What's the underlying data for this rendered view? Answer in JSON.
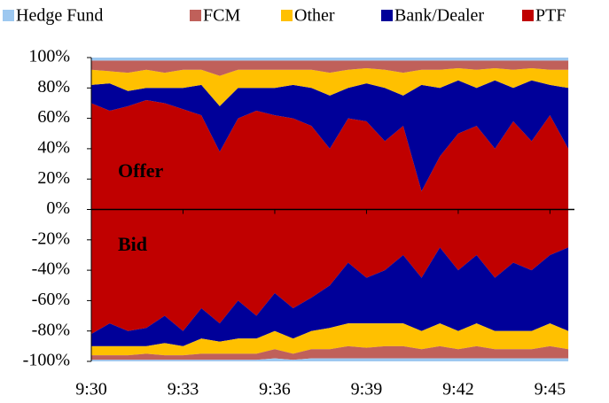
{
  "chart_data": {
    "type": "stacked_area",
    "annotations": [
      "Offer",
      "Bid"
    ],
    "x": [
      570,
      570.6,
      571.2,
      571.8,
      572.4,
      573,
      573.6,
      574.2,
      574.8,
      575.4,
      576,
      576.6,
      577.2,
      577.8,
      578.4,
      579,
      579.6,
      580.2,
      580.8,
      581.4,
      582,
      582.6,
      583.2,
      583.8,
      584.4,
      585,
      585.6
    ],
    "series": [
      {
        "name": "Hedge Fund",
        "color": "#9dc8f0",
        "values": [
          2,
          2,
          2,
          2,
          2,
          2,
          2,
          2,
          2,
          2,
          2,
          2,
          2,
          2,
          2,
          2,
          2,
          2,
          2,
          2,
          2,
          2,
          2,
          2,
          2,
          2,
          2
        ],
        "bid_values": [
          -1,
          -1,
          -1,
          -1,
          -1,
          -1,
          -1,
          -1,
          -1,
          -1,
          -2,
          -1,
          -2,
          -2,
          -2,
          -2,
          -2,
          -2,
          -2,
          -2,
          -2,
          -2,
          -2,
          -2,
          -2,
          -2,
          -2
        ]
      },
      {
        "name": "FCM",
        "color": "#c0605a",
        "values": [
          6,
          7,
          8,
          6,
          8,
          6,
          6,
          10,
          6,
          6,
          6,
          6,
          6,
          8,
          6,
          5,
          6,
          8,
          6,
          6,
          5,
          6,
          5,
          6,
          5,
          6,
          6
        ],
        "bid_values": [
          -3,
          -3,
          -3,
          -4,
          -3,
          -3,
          -4,
          -4,
          -4,
          -4,
          -6,
          -4,
          -6,
          -6,
          -8,
          -7,
          -8,
          -8,
          -6,
          -8,
          -6,
          -8,
          -6,
          -6,
          -6,
          -8,
          -6
        ]
      },
      {
        "name": "Other",
        "color": "#ffc000",
        "values": [
          10,
          8,
          12,
          12,
          10,
          12,
          10,
          20,
          12,
          12,
          12,
          10,
          12,
          15,
          12,
          10,
          12,
          15,
          10,
          12,
          8,
          12,
          8,
          12,
          8,
          10,
          12
        ],
        "bid_values": [
          -6,
          -6,
          -6,
          -5,
          -8,
          -6,
          -10,
          -8,
          -10,
          -10,
          -12,
          -10,
          -12,
          -14,
          -15,
          -16,
          -15,
          -15,
          -12,
          -15,
          -12,
          -15,
          -12,
          -12,
          -12,
          -15,
          -12
        ]
      },
      {
        "name": "Bank/Dealer",
        "color": "#000099",
        "values": [
          12,
          18,
          10,
          8,
          10,
          14,
          20,
          30,
          20,
          15,
          18,
          22,
          25,
          35,
          20,
          25,
          35,
          20,
          70,
          45,
          35,
          25,
          45,
          22,
          40,
          20,
          40
        ],
        "bid_values": [
          -8,
          -15,
          -10,
          -12,
          -18,
          -10,
          -20,
          -12,
          -25,
          -15,
          -25,
          -20,
          -22,
          -28,
          -40,
          -30,
          -35,
          -45,
          -35,
          -50,
          -40,
          -45,
          -35,
          -45,
          -40,
          -45,
          -55
        ]
      },
      {
        "name": "PTF",
        "color": "#c00000",
        "values": [
          70,
          65,
          68,
          72,
          70,
          66,
          62,
          38,
          60,
          65,
          62,
          60,
          55,
          40,
          60,
          58,
          45,
          55,
          12,
          35,
          50,
          55,
          40,
          58,
          45,
          62,
          40
        ],
        "bid_values": [
          -82,
          -75,
          -80,
          -78,
          -70,
          -80,
          -65,
          -75,
          -60,
          -70,
          -55,
          -65,
          -58,
          -50,
          -35,
          -45,
          -40,
          -30,
          -45,
          -25,
          -40,
          -30,
          -45,
          -35,
          -40,
          -30,
          -25
        ]
      }
    ],
    "xlim": [
      570,
      585.8
    ],
    "xticks": [
      {
        "value": 570,
        "label": "9:30"
      },
      {
        "value": 573,
        "label": "9:33"
      },
      {
        "value": 576,
        "label": "9:36"
      },
      {
        "value": 579,
        "label": "9:39"
      },
      {
        "value": 582,
        "label": "9:42"
      },
      {
        "value": 585,
        "label": "9:45"
      }
    ],
    "ylim": [
      -100,
      100
    ],
    "yticks": [
      {
        "value": 100,
        "label": "100%"
      },
      {
        "value": 80,
        "label": "80%"
      },
      {
        "value": 60,
        "label": "60%"
      },
      {
        "value": 40,
        "label": "40%"
      },
      {
        "value": 20,
        "label": "20%"
      },
      {
        "value": 0,
        "label": "0%"
      },
      {
        "value": -20,
        "label": "-20%"
      },
      {
        "value": -40,
        "label": "-40%"
      },
      {
        "value": -60,
        "label": "-60%"
      },
      {
        "value": -80,
        "label": "-80%"
      },
      {
        "value": -100,
        "label": "-100%"
      }
    ],
    "legend": "top"
  }
}
